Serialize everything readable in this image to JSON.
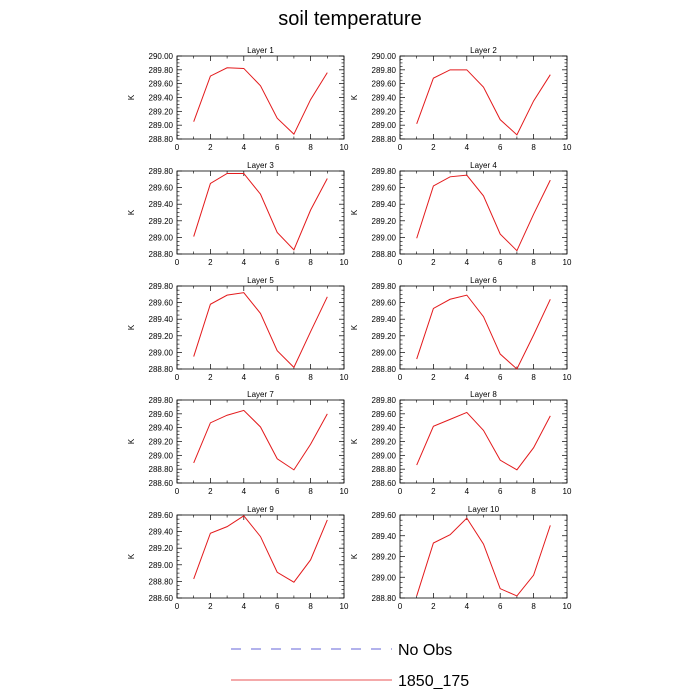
{
  "title": "soil temperature",
  "legend": [
    {
      "label": "No Obs",
      "color": "#3333cc",
      "dash": true
    },
    {
      "label": "1850_175",
      "color": "#e31a1c",
      "dash": false
    }
  ],
  "chart_data": [
    {
      "type": "line",
      "title": "Layer 1",
      "ylabel": "K",
      "xlim": [
        0,
        10
      ],
      "ylim": [
        288.8,
        290.0
      ],
      "xticks": [
        "0",
        "2",
        "4",
        "6",
        "8",
        "10"
      ],
      "yticks": [
        "288.80",
        "289.00",
        "289.20",
        "289.40",
        "289.60",
        "289.80",
        "290.00"
      ],
      "x": [
        1,
        2,
        3,
        4,
        5,
        6,
        7,
        8,
        9
      ],
      "series": [
        {
          "name": "1850_175",
          "values": [
            289.05,
            289.71,
            289.83,
            289.82,
            289.57,
            289.1,
            288.87,
            289.37,
            289.76
          ]
        }
      ]
    },
    {
      "type": "line",
      "title": "Layer 2",
      "ylabel": "K",
      "xlim": [
        0,
        10
      ],
      "ylim": [
        288.8,
        290.0
      ],
      "xticks": [
        "0",
        "2",
        "4",
        "6",
        "8",
        "10"
      ],
      "yticks": [
        "288.80",
        "289.00",
        "289.20",
        "289.40",
        "289.60",
        "289.80",
        "290.00"
      ],
      "x": [
        1,
        2,
        3,
        4,
        5,
        6,
        7,
        8,
        9
      ],
      "series": [
        {
          "name": "1850_175",
          "values": [
            289.02,
            289.68,
            289.8,
            289.8,
            289.55,
            289.08,
            288.86,
            289.35,
            289.73
          ]
        }
      ]
    },
    {
      "type": "line",
      "title": "Layer 3",
      "ylabel": "K",
      "xlim": [
        0,
        10
      ],
      "ylim": [
        288.8,
        289.8
      ],
      "xticks": [
        "0",
        "2",
        "4",
        "6",
        "8",
        "10"
      ],
      "yticks": [
        "288.80",
        "289.00",
        "289.20",
        "289.40",
        "289.60",
        "289.80"
      ],
      "x": [
        1,
        2,
        3,
        4,
        5,
        6,
        7,
        8,
        9
      ],
      "series": [
        {
          "name": "1850_175",
          "values": [
            289.01,
            289.65,
            289.77,
            289.77,
            289.52,
            289.06,
            288.85,
            289.33,
            289.71
          ]
        }
      ]
    },
    {
      "type": "line",
      "title": "Layer 4",
      "ylabel": "K",
      "xlim": [
        0,
        10
      ],
      "ylim": [
        288.8,
        289.8
      ],
      "xticks": [
        "0",
        "2",
        "4",
        "6",
        "8",
        "10"
      ],
      "yticks": [
        "288.80",
        "289.00",
        "289.20",
        "289.40",
        "289.60",
        "289.80"
      ],
      "x": [
        1,
        2,
        3,
        4,
        5,
        6,
        7,
        8,
        9
      ],
      "series": [
        {
          "name": "1850_175",
          "values": [
            288.99,
            289.62,
            289.73,
            289.75,
            289.5,
            289.04,
            288.84,
            289.28,
            289.69
          ]
        }
      ]
    },
    {
      "type": "line",
      "title": "Layer 5",
      "ylabel": "K",
      "xlim": [
        0,
        10
      ],
      "ylim": [
        288.8,
        289.8
      ],
      "xticks": [
        "0",
        "2",
        "4",
        "6",
        "8",
        "10"
      ],
      "yticks": [
        "288.80",
        "289.00",
        "289.20",
        "289.40",
        "289.60",
        "289.80"
      ],
      "x": [
        1,
        2,
        3,
        4,
        5,
        6,
        7,
        8,
        9
      ],
      "series": [
        {
          "name": "1850_175",
          "values": [
            288.95,
            289.58,
            289.69,
            289.72,
            289.47,
            289.02,
            288.82,
            289.25,
            289.67
          ]
        }
      ]
    },
    {
      "type": "line",
      "title": "Layer 6",
      "ylabel": "K",
      "xlim": [
        0,
        10
      ],
      "ylim": [
        288.8,
        289.8
      ],
      "xticks": [
        "0",
        "2",
        "4",
        "6",
        "8",
        "10"
      ],
      "yticks": [
        "288.80",
        "289.00",
        "289.20",
        "289.40",
        "289.60",
        "289.80"
      ],
      "x": [
        1,
        2,
        3,
        4,
        5,
        6,
        7,
        8,
        9
      ],
      "series": [
        {
          "name": "1850_175",
          "values": [
            288.92,
            289.53,
            289.64,
            289.69,
            289.43,
            288.98,
            288.8,
            289.21,
            289.64
          ]
        }
      ]
    },
    {
      "type": "line",
      "title": "Layer 7",
      "ylabel": "K",
      "xlim": [
        0,
        10
      ],
      "ylim": [
        288.6,
        289.8
      ],
      "xticks": [
        "0",
        "2",
        "4",
        "6",
        "8",
        "10"
      ],
      "yticks": [
        "288.60",
        "288.80",
        "289.00",
        "289.20",
        "289.40",
        "289.60",
        "289.80"
      ],
      "x": [
        1,
        2,
        3,
        4,
        5,
        6,
        7,
        8,
        9
      ],
      "series": [
        {
          "name": "1850_175",
          "values": [
            288.89,
            289.47,
            289.58,
            289.65,
            289.41,
            288.95,
            288.79,
            289.16,
            289.6
          ]
        }
      ]
    },
    {
      "type": "line",
      "title": "Layer 8",
      "ylabel": "K",
      "xlim": [
        0,
        10
      ],
      "ylim": [
        288.6,
        289.8
      ],
      "xticks": [
        "0",
        "2",
        "4",
        "6",
        "8",
        "10"
      ],
      "yticks": [
        "288.60",
        "288.80",
        "289.00",
        "289.20",
        "289.40",
        "289.60",
        "289.80"
      ],
      "x": [
        1,
        2,
        3,
        4,
        5,
        6,
        7,
        8,
        9
      ],
      "series": [
        {
          "name": "1850_175",
          "values": [
            288.86,
            289.42,
            289.52,
            289.62,
            289.36,
            288.93,
            288.79,
            289.11,
            289.57
          ]
        }
      ]
    },
    {
      "type": "line",
      "title": "Layer 9",
      "ylabel": "K",
      "xlim": [
        0,
        10
      ],
      "ylim": [
        288.6,
        289.6
      ],
      "xticks": [
        "0",
        "2",
        "4",
        "6",
        "8",
        "10"
      ],
      "yticks": [
        "288.60",
        "288.80",
        "289.00",
        "289.20",
        "289.40",
        "289.60"
      ],
      "x": [
        1,
        2,
        3,
        4,
        5,
        6,
        7,
        8,
        9
      ],
      "series": [
        {
          "name": "1850_175",
          "values": [
            288.83,
            289.38,
            289.46,
            289.59,
            289.34,
            288.91,
            288.79,
            289.06,
            289.54
          ]
        }
      ]
    },
    {
      "type": "line",
      "title": "Layer 10",
      "ylabel": "K",
      "xlim": [
        0,
        10
      ],
      "ylim": [
        288.8,
        289.6
      ],
      "xticks": [
        "0",
        "2",
        "4",
        "6",
        "8",
        "10"
      ],
      "yticks": [
        "288.80",
        "289.00",
        "289.20",
        "289.40",
        "289.60"
      ],
      "x": [
        1,
        2,
        3,
        4,
        5,
        6,
        7,
        8,
        9
      ],
      "series": [
        {
          "name": "1850_175",
          "values": [
            288.82,
            289.33,
            289.41,
            289.57,
            289.32,
            288.89,
            288.82,
            289.02,
            289.5
          ]
        }
      ]
    }
  ]
}
